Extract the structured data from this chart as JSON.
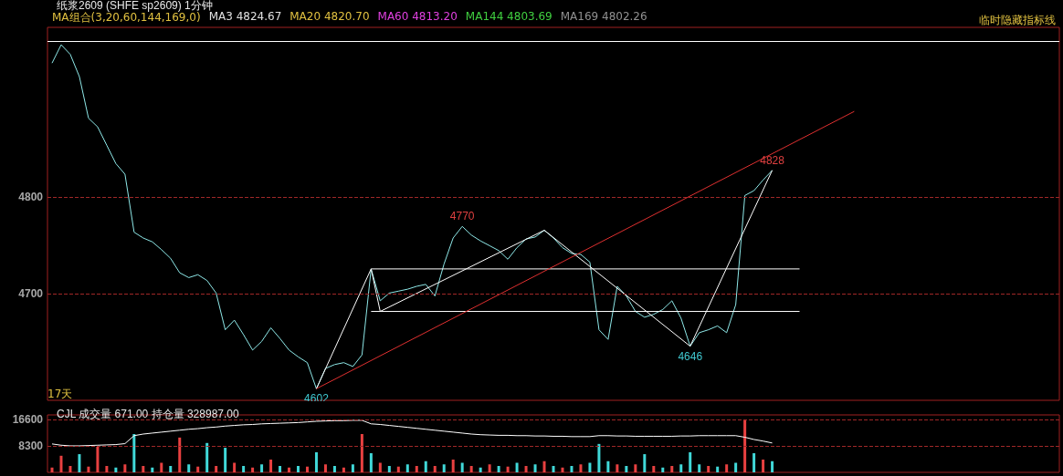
{
  "chart_data": [
    {
      "type": "line",
      "title": "纸浆2609 (SHFE sp2609) 1分钟",
      "annotations": [
        "MA组合(3,20,60,144,169,0)",
        "MA3 4824.67",
        "MA20 4820.70",
        "MA60 4813.20",
        "MA144 4803.69",
        "MA169 4802.26",
        "临时隐藏指标线",
        "17天"
      ],
      "categories": [
        null,
        null,
        null,
        null,
        null,
        null,
        null,
        null,
        null,
        null,
        null,
        null,
        null,
        null,
        null,
        null,
        null,
        null,
        null,
        null,
        null,
        null,
        null,
        null,
        null,
        null,
        null,
        null,
        null,
        null,
        null,
        null,
        null,
        null,
        null,
        null,
        null,
        null,
        null,
        null,
        null,
        null,
        null,
        null,
        null,
        null,
        null,
        null,
        null,
        null,
        null,
        null,
        null,
        null,
        null,
        null,
        null,
        null,
        null,
        null,
        null,
        null,
        null,
        null,
        null,
        null,
        null,
        null,
        null,
        null,
        null,
        null,
        null,
        null,
        null,
        null,
        null,
        null,
        null,
        null,
        null,
        null,
        null,
        null,
        null,
        null,
        null,
        null,
        null,
        null,
        null,
        null,
        null,
        null,
        null,
        null,
        null,
        null,
        null,
        null,
        null,
        null,
        null,
        null,
        null,
        null,
        null,
        null,
        null,
        null,
        null
      ],
      "ylim": [
        4590,
        4976
      ],
      "yticks": [
        4700,
        4800
      ],
      "grid": "y",
      "marker": "none",
      "tick_labels": "y",
      "ref_lines": [
        {
          "axis": "y",
          "value": 4962,
          "color": "#ffffff"
        }
      ],
      "series": [
        {
          "color": "#8ee8e8",
          "values": [
            4939,
            4958,
            4948,
            4925,
            4882,
            4873,
            4854,
            4835,
            4824,
            4764,
            4758,
            4754,
            4746,
            4737,
            4722,
            4717,
            4720,
            4714,
            4701,
            4663,
            4673,
            4658,
            4642,
            4651,
            4665,
            4654,
            4642,
            4635,
            4629,
            4602,
            4623,
            4627,
            4629,
            4625,
            4637,
            4726,
            4693,
            4701,
            4703,
            4705,
            4708,
            4710,
            4698,
            4731,
            4758,
            4770,
            4761,
            4755,
            4750,
            4745,
            4736,
            4748,
            4757,
            4759,
            4766,
            4758,
            4748,
            4742,
            4741,
            4733,
            4663,
            4653,
            4708,
            4698,
            4682,
            4676,
            4679,
            4684,
            4693,
            4675,
            4646,
            4660,
            4663,
            4667,
            4660,
            4689,
            4802,
            4807,
            4818,
            4828,
            null,
            null,
            null,
            null,
            null,
            null,
            null,
            null,
            null,
            null,
            null,
            null,
            null,
            null,
            null,
            null,
            null,
            null,
            null,
            null,
            null,
            null,
            null,
            null,
            null,
            null,
            null,
            null,
            null,
            null,
            null
          ],
          "value_labels": [
            null,
            null,
            null,
            null,
            null,
            null,
            null,
            null,
            null,
            null,
            null,
            null,
            null,
            null,
            null,
            null,
            null,
            null,
            null,
            null,
            null,
            null,
            null,
            null,
            null,
            null,
            null,
            null,
            null,
            "4602",
            null,
            null,
            null,
            null,
            null,
            null,
            null,
            null,
            null,
            null,
            null,
            null,
            null,
            null,
            null,
            "4770",
            null,
            null,
            null,
            null,
            null,
            null,
            null,
            null,
            null,
            null,
            null,
            null,
            null,
            null,
            null,
            null,
            null,
            null,
            null,
            null,
            null,
            null,
            null,
            null,
            "4646",
            null,
            null,
            null,
            null,
            null,
            null,
            null,
            null,
            "4828",
            null,
            null,
            null,
            null,
            null,
            null,
            null,
            null,
            null,
            null,
            null,
            null,
            null,
            null,
            null,
            null,
            null,
            null,
            null,
            null,
            null,
            null,
            null,
            null,
            null,
            null,
            null,
            null,
            null,
            null,
            null
          ]
        },
        {
          "color": "#ffffff",
          "values": [
            null,
            null,
            null,
            null,
            null,
            null,
            null,
            null,
            null,
            null,
            null,
            null,
            null,
            null,
            null,
            null,
            null,
            null,
            null,
            null,
            null,
            null,
            null,
            null,
            null,
            null,
            null,
            null,
            null,
            4602,
            null,
            null,
            null,
            null,
            null,
            4726,
            4682,
            null,
            null,
            null,
            null,
            null,
            null,
            null,
            null,
            null,
            null,
            null,
            null,
            null,
            null,
            null,
            null,
            null,
            4766,
            null,
            null,
            null,
            null,
            null,
            null,
            null,
            null,
            null,
            null,
            null,
            null,
            null,
            null,
            null,
            4646,
            null,
            null,
            null,
            null,
            null,
            null,
            null,
            null,
            4828,
            null,
            null,
            null,
            null,
            null,
            null,
            null,
            null,
            null,
            null,
            null,
            null,
            null,
            null,
            null,
            null,
            null,
            null,
            null,
            null,
            null,
            null,
            null,
            null,
            null,
            null,
            null,
            null,
            null,
            null,
            null
          ]
        },
        {
          "color": "#ffffff",
          "values": [
            null,
            null,
            null,
            null,
            null,
            null,
            null,
            null,
            null,
            null,
            null,
            null,
            null,
            null,
            null,
            null,
            null,
            null,
            null,
            null,
            null,
            null,
            null,
            null,
            null,
            null,
            null,
            null,
            null,
            null,
            null,
            null,
            null,
            null,
            null,
            4726,
            null,
            null,
            null,
            null,
            null,
            null,
            null,
            null,
            null,
            null,
            null,
            null,
            null,
            null,
            null,
            null,
            null,
            null,
            null,
            null,
            null,
            null,
            null,
            null,
            null,
            null,
            null,
            null,
            null,
            null,
            null,
            null,
            null,
            null,
            null,
            null,
            null,
            null,
            null,
            null,
            null,
            null,
            null,
            null,
            null,
            null,
            4726,
            null,
            null,
            null,
            null,
            null,
            null,
            null,
            null,
            null,
            null,
            null,
            null,
            null,
            null,
            null,
            null,
            null,
            null,
            null,
            null,
            null,
            null,
            null,
            null,
            null,
            null,
            null,
            null
          ]
        },
        {
          "color": "#ffffff",
          "values": [
            null,
            null,
            null,
            null,
            null,
            null,
            null,
            null,
            null,
            null,
            null,
            null,
            null,
            null,
            null,
            null,
            null,
            null,
            null,
            null,
            null,
            null,
            null,
            null,
            null,
            null,
            null,
            null,
            null,
            null,
            null,
            null,
            null,
            null,
            null,
            4682,
            null,
            null,
            null,
            null,
            null,
            null,
            null,
            null,
            null,
            null,
            null,
            null,
            null,
            null,
            null,
            null,
            null,
            null,
            null,
            null,
            null,
            null,
            null,
            null,
            null,
            null,
            null,
            null,
            null,
            null,
            null,
            null,
            null,
            null,
            null,
            null,
            null,
            null,
            null,
            null,
            null,
            null,
            null,
            null,
            null,
            null,
            4682,
            null,
            null,
            null,
            null,
            null,
            null,
            null,
            null,
            null,
            null,
            null,
            null,
            null,
            null,
            null,
            null,
            null,
            null,
            null,
            null,
            null,
            null,
            null,
            null,
            null,
            null,
            null,
            null
          ]
        },
        {
          "color": "#e03030",
          "values": [
            null,
            null,
            null,
            null,
            null,
            null,
            null,
            null,
            null,
            null,
            null,
            null,
            null,
            null,
            null,
            null,
            null,
            null,
            null,
            null,
            null,
            null,
            null,
            null,
            null,
            null,
            null,
            null,
            null,
            4602,
            null,
            null,
            null,
            null,
            null,
            null,
            null,
            null,
            null,
            null,
            null,
            null,
            null,
            null,
            null,
            null,
            null,
            null,
            null,
            null,
            null,
            null,
            null,
            null,
            null,
            null,
            null,
            null,
            null,
            null,
            null,
            null,
            null,
            null,
            null,
            null,
            null,
            null,
            null,
            null,
            null,
            null,
            null,
            null,
            null,
            null,
            null,
            null,
            null,
            null,
            null,
            null,
            null,
            null,
            null,
            null,
            null,
            null,
            4889,
            null,
            null,
            null,
            null,
            null,
            null,
            null,
            null,
            null,
            null,
            null,
            null,
            null,
            null,
            null,
            null,
            null,
            null,
            null,
            null,
            null,
            null
          ]
        }
      ]
    },
    {
      "type": "bar",
      "title": "CJL 成交量 671.00 持仓量 328987.00",
      "categories": [
        null,
        null,
        null,
        null,
        null,
        null,
        null,
        null,
        null,
        null,
        null,
        null,
        null,
        null,
        null,
        null,
        null,
        null,
        null,
        null,
        null,
        null,
        null,
        null,
        null,
        null,
        null,
        null,
        null,
        null,
        null,
        null,
        null,
        null,
        null,
        null,
        null,
        null,
        null,
        null,
        null,
        null,
        null,
        null,
        null,
        null,
        null,
        null,
        null,
        null,
        null,
        null,
        null,
        null,
        null,
        null,
        null,
        null,
        null,
        null,
        null,
        null,
        null,
        null,
        null,
        null,
        null,
        null,
        null,
        null,
        null,
        null,
        null,
        null,
        null,
        null,
        null,
        null,
        null,
        null,
        null,
        null,
        null,
        null,
        null,
        null,
        null,
        null,
        null,
        null,
        null,
        null,
        null,
        null,
        null,
        null,
        null,
        null,
        null,
        null,
        null,
        null,
        null,
        null,
        null,
        null,
        null,
        null,
        null,
        null,
        null
      ],
      "ylim": [
        0,
        18000
      ],
      "yticks": [
        8300,
        16600
      ],
      "grid": "y",
      "marker": "none",
      "tick_labels": "y",
      "series": [
        {
          "values": [
            1500,
            5200,
            2000,
            5700,
            1800,
            8000,
            2000,
            1500,
            2500,
            12000,
            2000,
            1500,
            3000,
            2000,
            10900,
            2500,
            1800,
            9200,
            2000,
            7700,
            3000,
            2000,
            1500,
            2500,
            4000,
            2000,
            1500,
            2000,
            1800,
            6300,
            2500,
            2000,
            1500,
            2500,
            12000,
            6000,
            3000,
            2000,
            1800,
            2500,
            2000,
            3500,
            2000,
            2500,
            4000,
            3000,
            2000,
            1500,
            2500,
            2000,
            1800,
            3000,
            2000,
            2500,
            3500,
            2000,
            1500,
            2000,
            2500,
            3000,
            8900,
            3500,
            2500,
            2000,
            2500,
            5700,
            2000,
            1500,
            2000,
            2500,
            6300,
            2500,
            2000,
            1800,
            2500,
            3000,
            16600,
            6000,
            4000,
            3500,
            null,
            null,
            null,
            null,
            null,
            null,
            null,
            null,
            null,
            null,
            null,
            null,
            null,
            null,
            null,
            null,
            null,
            null,
            null,
            null,
            null,
            null,
            null,
            null,
            null,
            null,
            null,
            null,
            null,
            null,
            null
          ],
          "colors": [
            "#e84040",
            "#e84040",
            "#e84040",
            "#40d8d8",
            "#e84040",
            "#e84040",
            "#e84040",
            "#40d8d8",
            "#e84040",
            "#40d8d8",
            "#e84040",
            "#40d8d8",
            "#e84040",
            "#40d8d8",
            "#e84040",
            "#40d8d8",
            "#e84040",
            "#40d8d8",
            "#e84040",
            "#40d8d8",
            "#e84040",
            "#40d8d8",
            "#e84040",
            "#40d8d8",
            "#e84040",
            "#40d8d8",
            "#e84040",
            "#40d8d8",
            "#e84040",
            "#40d8d8",
            "#e84040",
            "#40d8d8",
            "#e84040",
            "#40d8d8",
            "#e84040",
            "#40d8d8",
            "#e84040",
            "#40d8d8",
            "#e84040",
            "#40d8d8",
            "#e84040",
            "#40d8d8",
            "#e84040",
            "#40d8d8",
            "#e84040",
            "#40d8d8",
            "#e84040",
            "#40d8d8",
            "#e84040",
            "#40d8d8",
            "#e84040",
            "#40d8d8",
            "#e84040",
            "#40d8d8",
            "#e84040",
            "#40d8d8",
            "#e84040",
            "#40d8d8",
            "#e84040",
            "#40d8d8",
            "#40d8d8",
            "#40d8d8",
            "#e84040",
            "#40d8d8",
            "#e84040",
            "#40d8d8",
            "#e84040",
            "#40d8d8",
            "#e84040",
            "#40d8d8",
            "#40d8d8",
            "#40d8d8",
            "#e84040",
            "#40d8d8",
            "#e84040",
            "#40d8d8",
            "#e84040",
            "#40d8d8",
            "#e84040",
            "#40d8d8",
            null,
            null,
            null,
            null,
            null,
            null,
            null,
            null,
            null,
            null,
            null,
            null,
            null,
            null,
            null,
            null,
            null,
            null,
            null,
            null,
            null,
            null,
            null,
            null,
            null,
            null,
            null,
            null,
            null,
            null,
            null
          ]
        },
        {
          "type": "line",
          "color": "#ffffff",
          "values": [
            8900,
            8500,
            8300,
            8300,
            8400,
            8500,
            8600,
            8700,
            9000,
            11500,
            12000,
            12300,
            12600,
            12900,
            13200,
            13500,
            13700,
            14000,
            14200,
            14500,
            14700,
            14900,
            15000,
            15200,
            15300,
            15400,
            15500,
            15600,
            15800,
            16000,
            16100,
            16200,
            16200,
            16300,
            16300,
            15200,
            15000,
            14700,
            14400,
            14100,
            13800,
            13500,
            13200,
            12900,
            12600,
            12300,
            12000,
            11800,
            11700,
            11600,
            11600,
            11500,
            11500,
            11400,
            11400,
            11300,
            11300,
            11200,
            11200,
            11200,
            11500,
            11500,
            11400,
            11400,
            11300,
            11300,
            11300,
            11300,
            11300,
            11400,
            11400,
            11500,
            11500,
            11500,
            11500,
            11500,
            11000,
            10300,
            9800,
            9200,
            null,
            null,
            null,
            null,
            null,
            null,
            null,
            null,
            null,
            null,
            null,
            null,
            null,
            null,
            null,
            null,
            null,
            null,
            null,
            null,
            null,
            null,
            null,
            null,
            null,
            null,
            null,
            null,
            null,
            null,
            null
          ]
        }
      ]
    }
  ]
}
